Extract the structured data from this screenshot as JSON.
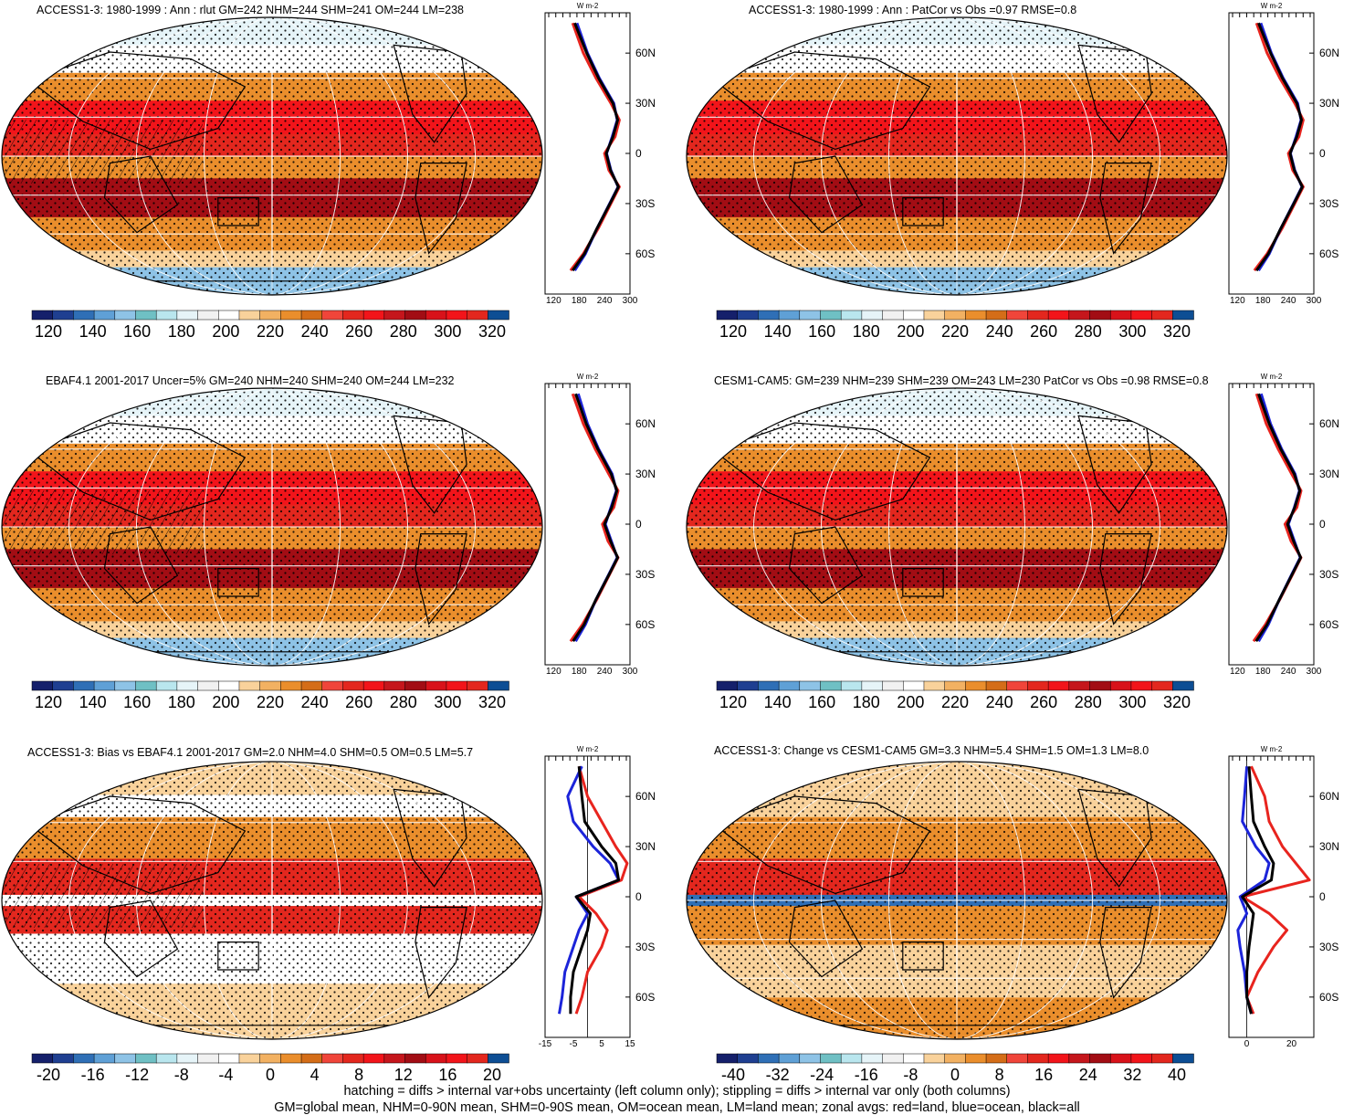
{
  "figure": {
    "footer_line1": "hatching = diffs > internal var+obs uncertainty (left column only); stippling = diffs > internal var only (both columns)",
    "footer_line2": "GM=global mean, NHM=0-90N mean, SHM=0-90S mean, OM=ocean mean, LM=land mean; zonal avgs: red=land, blue=ocean, black=all",
    "units_label": "W m-2",
    "lat_tick_labels": [
      "60N",
      "30N",
      "0",
      "30S",
      "60S"
    ],
    "colors": {
      "deep_blue": "#15206b",
      "mid_blue": "#2f6fb6",
      "light_blue": "#8ec3e6",
      "pale": "#e6f4f8",
      "white": "#ffffff",
      "light_orange": "#f9d29b",
      "orange": "#ea8e2c",
      "red": "#e3271e",
      "bright_red": "#f2141a",
      "dark_red": "#a20d14",
      "land_line": "#e8241e",
      "ocean_line": "#1c24d9",
      "all_line": "#000000"
    }
  },
  "chart_data": [
    {
      "type": "heatmap",
      "title": "ACCESS1-3: 1980-1999 : Ann : rlut GM=242 NHM=244 SHM=241 OM=244 LM=238",
      "colorbar_ticks": [
        "120",
        "140",
        "160",
        "180",
        "200",
        "220",
        "240",
        "260",
        "280",
        "300",
        "320"
      ],
      "zonal_x_ticks": [
        "120",
        "180",
        "240",
        "300"
      ],
      "zonal_xlim": [
        100,
        300
      ],
      "lat_ticks": [
        60,
        30,
        0,
        -30,
        -60
      ],
      "zonal_series": [
        {
          "color": "red",
          "lat": [
            78,
            60,
            45,
            30,
            20,
            10,
            0,
            -10,
            -20,
            -30,
            -45,
            -60,
            -70
          ],
          "values": [
            165,
            190,
            220,
            255,
            275,
            265,
            240,
            250,
            275,
            255,
            225,
            190,
            160
          ]
        },
        {
          "color": "blue",
          "lat": [
            78,
            60,
            45,
            30,
            20,
            10,
            0,
            -10,
            -20,
            -30,
            -45,
            -60,
            -70
          ],
          "values": [
            175,
            200,
            228,
            262,
            270,
            258,
            245,
            255,
            272,
            252,
            222,
            195,
            170
          ]
        },
        {
          "color": "black",
          "lat": [
            78,
            60,
            45,
            30,
            20,
            10,
            0,
            -10,
            -20,
            -30,
            -45,
            -60,
            -70
          ],
          "values": [
            170,
            198,
            226,
            260,
            271,
            260,
            244,
            254,
            273,
            253,
            222,
            193,
            165
          ]
        }
      ]
    },
    {
      "type": "heatmap",
      "title": "ACCESS1-3: 1980-1999 : Ann : PatCor vs Obs =0.97 RMSE=0.8",
      "colorbar_ticks": [
        "120",
        "140",
        "160",
        "180",
        "200",
        "220",
        "240",
        "260",
        "280",
        "300",
        "320"
      ],
      "zonal_x_ticks": [
        "120",
        "180",
        "240",
        "300"
      ],
      "zonal_xlim": [
        100,
        300
      ],
      "lat_ticks": [
        60,
        30,
        0,
        -30,
        -60
      ],
      "zonal_series": [
        {
          "color": "red",
          "lat": [
            78,
            60,
            45,
            30,
            20,
            10,
            0,
            -10,
            -20,
            -30,
            -45,
            -60,
            -70
          ],
          "values": [
            165,
            190,
            220,
            255,
            275,
            265,
            240,
            250,
            275,
            255,
            225,
            190,
            160
          ]
        },
        {
          "color": "blue",
          "lat": [
            78,
            60,
            45,
            30,
            20,
            10,
            0,
            -10,
            -20,
            -30,
            -45,
            -60,
            -70
          ],
          "values": [
            175,
            200,
            228,
            262,
            270,
            258,
            245,
            255,
            272,
            252,
            222,
            195,
            170
          ]
        },
        {
          "color": "black",
          "lat": [
            78,
            60,
            45,
            30,
            20,
            10,
            0,
            -10,
            -20,
            -30,
            -45,
            -60,
            -70
          ],
          "values": [
            170,
            198,
            226,
            260,
            271,
            260,
            244,
            254,
            273,
            253,
            222,
            193,
            165
          ]
        }
      ]
    },
    {
      "type": "heatmap",
      "title": "EBAF4.1 2001-2017 Uncer=5% GM=240 NHM=240 SHM=240 OM=244 LM=232",
      "colorbar_ticks": [
        "120",
        "140",
        "160",
        "180",
        "200",
        "220",
        "240",
        "260",
        "280",
        "300",
        "320"
      ],
      "zonal_x_ticks": [
        "120",
        "180",
        "240",
        "300"
      ],
      "zonal_xlim": [
        100,
        300
      ],
      "lat_ticks": [
        60,
        30,
        0,
        -30,
        -60
      ],
      "zonal_series": [
        {
          "color": "red",
          "lat": [
            78,
            60,
            45,
            30,
            20,
            10,
            0,
            -10,
            -20,
            -30,
            -45,
            -60,
            -70
          ],
          "values": [
            165,
            190,
            218,
            250,
            272,
            262,
            235,
            248,
            272,
            252,
            222,
            188,
            160
          ]
        },
        {
          "color": "blue",
          "lat": [
            78,
            60,
            45,
            30,
            20,
            10,
            0,
            -10,
            -20,
            -30,
            -45,
            -60,
            -70
          ],
          "values": [
            178,
            200,
            226,
            258,
            268,
            255,
            242,
            256,
            270,
            250,
            220,
            195,
            172
          ]
        },
        {
          "color": "black",
          "lat": [
            78,
            60,
            45,
            30,
            20,
            10,
            0,
            -10,
            -20,
            -30,
            -45,
            -60,
            -70
          ],
          "values": [
            172,
            197,
            224,
            256,
            269,
            257,
            240,
            254,
            271,
            251,
            220,
            192,
            166
          ]
        }
      ]
    },
    {
      "type": "heatmap",
      "title": "CESM1-CAM5: GM=239 NHM=239 SHM=239 OM=243 LM=230 PatCor vs Obs =0.98 RMSE=0.8",
      "colorbar_ticks": [
        "120",
        "140",
        "160",
        "180",
        "200",
        "220",
        "240",
        "260",
        "280",
        "300",
        "320"
      ],
      "zonal_x_ticks": [
        "120",
        "180",
        "240",
        "300"
      ],
      "zonal_xlim": [
        100,
        300
      ],
      "lat_ticks": [
        60,
        30,
        0,
        -30,
        -60
      ],
      "zonal_series": [
        {
          "color": "red",
          "lat": [
            78,
            60,
            45,
            30,
            20,
            10,
            0,
            -10,
            -20,
            -30,
            -45,
            -60,
            -70
          ],
          "values": [
            165,
            188,
            216,
            248,
            270,
            260,
            232,
            246,
            270,
            250,
            220,
            186,
            158
          ]
        },
        {
          "color": "blue",
          "lat": [
            78,
            60,
            45,
            30,
            20,
            10,
            0,
            -10,
            -20,
            -30,
            -45,
            -60,
            -70
          ],
          "values": [
            176,
            198,
            224,
            256,
            266,
            254,
            240,
            254,
            268,
            248,
            219,
            193,
            170
          ]
        },
        {
          "color": "black",
          "lat": [
            78,
            60,
            45,
            30,
            20,
            10,
            0,
            -10,
            -20,
            -30,
            -45,
            -60,
            -70
          ],
          "values": [
            170,
            195,
            222,
            254,
            267,
            255,
            238,
            252,
            269,
            249,
            219,
            190,
            164
          ]
        }
      ]
    },
    {
      "type": "heatmap",
      "title": "ACCESS1-3: Bias vs EBAF4.1 2001-2017 GM=2.0 NHM=4.0 SHM=0.5 OM=0.5 LM=5.7",
      "colorbar_ticks": [
        "-20",
        "-16",
        "-12",
        "-8",
        "-4",
        "0",
        "4",
        "8",
        "12",
        "16",
        "20"
      ],
      "zonal_x_ticks": [
        "-15",
        "-5",
        "5",
        "15"
      ],
      "zonal_xlim": [
        -15,
        15
      ],
      "lat_ticks": [
        60,
        30,
        0,
        -30,
        -60
      ],
      "zonal_series": [
        {
          "color": "red",
          "lat": [
            78,
            60,
            45,
            30,
            20,
            10,
            0,
            -10,
            -20,
            -30,
            -45,
            -60,
            -70
          ],
          "values": [
            -3,
            0,
            5,
            10,
            14,
            12,
            -3,
            3,
            7,
            5,
            0,
            -2,
            -4
          ]
        },
        {
          "color": "blue",
          "lat": [
            78,
            60,
            45,
            30,
            20,
            10,
            0,
            -10,
            -20,
            -30,
            -45,
            -60,
            -70
          ],
          "values": [
            -2,
            -7,
            -5,
            2,
            8,
            11,
            -4,
            0,
            -3,
            -5,
            -8,
            -9,
            -10
          ]
        },
        {
          "color": "black",
          "lat": [
            78,
            60,
            45,
            30,
            20,
            10,
            0,
            -10,
            -20,
            -30,
            -45,
            -60,
            -70
          ],
          "values": [
            -3,
            -2,
            -1,
            5,
            10,
            11,
            -4,
            1,
            0,
            -2,
            -5,
            -6,
            -6
          ]
        }
      ]
    },
    {
      "type": "heatmap",
      "title": "ACCESS1-3: Change vs CESM1-CAM5 GM=3.3 NHM=5.4 SHM=1.5 OM=1.3 LM=8.0",
      "colorbar_ticks": [
        "-40",
        "-32",
        "-24",
        "-16",
        "-8",
        "0",
        "8",
        "16",
        "24",
        "32",
        "40"
      ],
      "zonal_x_ticks": [
        "0",
        "20"
      ],
      "zonal_xlim": [
        -8,
        30
      ],
      "lat_ticks": [
        60,
        30,
        0,
        -30,
        -60
      ],
      "zonal_series": [
        {
          "color": "red",
          "lat": [
            78,
            60,
            45,
            30,
            20,
            10,
            0,
            -10,
            -20,
            -30,
            -45,
            -60,
            -70
          ],
          "values": [
            2,
            8,
            10,
            16,
            22,
            28,
            -2,
            10,
            18,
            12,
            5,
            0,
            3
          ]
        },
        {
          "color": "blue",
          "lat": [
            78,
            60,
            45,
            30,
            20,
            10,
            0,
            -10,
            -20,
            -30,
            -45,
            -60,
            -70
          ],
          "values": [
            0,
            -1,
            -2,
            4,
            10,
            8,
            -3,
            0,
            -4,
            -3,
            -1,
            0,
            2
          ]
        },
        {
          "color": "black",
          "lat": [
            78,
            60,
            45,
            30,
            20,
            10,
            0,
            -10,
            -20,
            -30,
            -45,
            -60,
            -70
          ],
          "values": [
            1,
            2,
            3,
            8,
            12,
            11,
            -2,
            3,
            2,
            1,
            0,
            0,
            2
          ]
        }
      ]
    }
  ]
}
